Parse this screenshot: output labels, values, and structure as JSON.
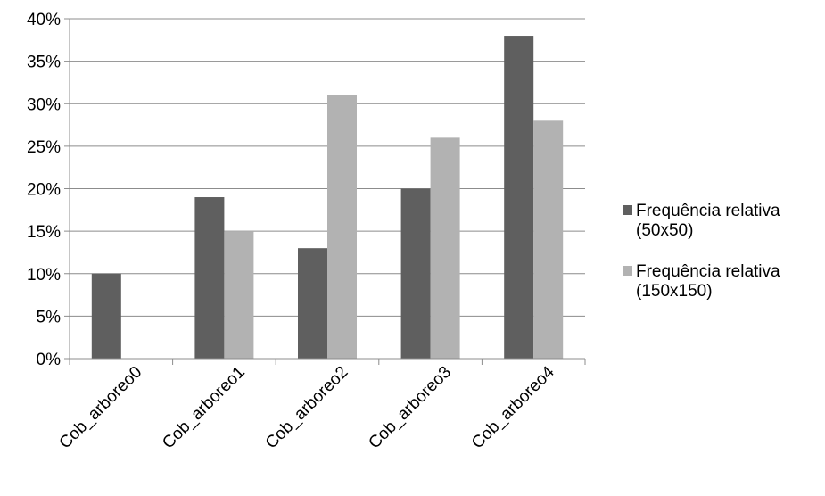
{
  "chart_data": {
    "type": "bar",
    "categories": [
      "Cob_arboreo0",
      "Cob_arboreo1",
      "Cob_arboreo2",
      "Cob_arboreo3",
      "Cob_arboreo4"
    ],
    "series": [
      {
        "name": "Frequência relativa (50x50)",
        "name_lines": [
          "Frequência relativa",
          "(50x50)"
        ],
        "color": "#5f5f5f",
        "values": [
          0.1,
          0.19,
          0.13,
          0.2,
          0.38
        ]
      },
      {
        "name": "Frequência relativa (150x150)",
        "name_lines": [
          "Frequência relativa",
          "(150x150)"
        ],
        "color": "#b2b2b2",
        "values": [
          0.0,
          0.15,
          0.31,
          0.26,
          0.28
        ]
      }
    ],
    "yticks": [
      "0%",
      "5%",
      "10%",
      "15%",
      "20%",
      "25%",
      "30%",
      "35%",
      "40%"
    ],
    "ylim": [
      0,
      0.4
    ],
    "grid": true,
    "legend_position": "right",
    "title": "",
    "xlabel": "",
    "ylabel": ""
  }
}
